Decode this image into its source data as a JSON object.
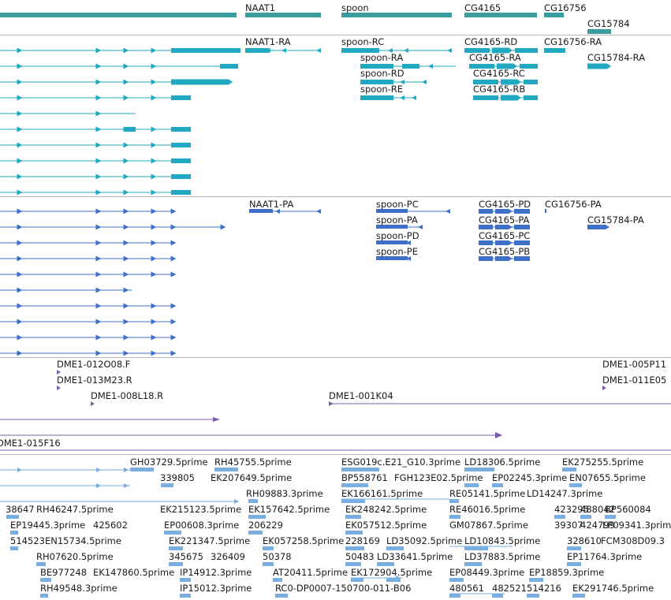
{
  "colors": {
    "gene": "#3a9d9d",
    "transcript": "#22a8c0",
    "protein": "#3f6fc6",
    "clone": "#7d5cb0",
    "est": "#78aee0",
    "separator": "#b8b8b8"
  },
  "tracks": {
    "genes": [
      "NAAT1",
      "spoon",
      "CG4165",
      "CG16756",
      "CG15784"
    ],
    "transcripts": [
      "NAAT1-RA",
      "spoon-RC",
      "spoon-RA",
      "spoon-RD",
      "spoon-RE",
      "CG4165-RD",
      "CG4165-RA",
      "CG4165-RC",
      "CG4165-RB",
      "CG16756-RA",
      "CG15784-RA"
    ],
    "proteins": [
      "NAAT1-PA",
      "spoon-PC",
      "spoon-PA",
      "spoon-PD",
      "spoon-PE",
      "CG4165-PD",
      "CG4165-PA",
      "CG4165-PC",
      "CG4165-PB",
      "CG16756-PA",
      "CG15784-PA"
    ],
    "clones": [
      "DME1-012O08.F",
      "DME1-013M23.R",
      "DME1-008L18.R",
      "DME1-001K04",
      "DME1-015F16",
      "DME1-005P11",
      "DME1-011E05"
    ],
    "ests": [
      "GH03729.5prime",
      "RH45755.5prime",
      "ESG019c.E21_G10.3prime",
      "LD18306.5prime",
      "EK275255.5prime",
      "339805",
      "EK207649.5prime",
      "BP558761",
      "FGH123E02.5prime",
      "EP02245.3prime",
      "EN07655.5prime",
      "RH09883.3prime",
      "EK166161.5prime",
      "RE05141.5prime",
      "LD14247.3prime",
      "38647",
      "RH46247.5prime",
      "EK215123.5prime",
      "EK157642.5prime",
      "EK248242.5prime",
      "RE46016.5prime",
      "423295",
      "488042",
      "BP560084",
      "EP19445.3prime",
      "425602",
      "EP00608.3prime",
      "206229",
      "EK057512.5prime",
      "GM07867.5prime",
      "39307",
      "424799",
      "LP09341.3prime",
      "514523",
      "EN15734.5prime",
      "EK221347.5prime",
      "EK057258.5prime",
      "228169",
      "LD35092.5prime",
      "LD10843.5prime",
      "328610",
      "FCM308D09.3",
      "RH07620.5prime",
      "345675",
      "326409",
      "50378",
      "50483",
      "LD33641.5prime",
      "LD37883.5prime",
      "EP11764.3prime",
      "BE977248",
      "EK147860.5prime",
      "IP14912.3prime",
      "AT20411.5prime",
      "EK172904.5prime",
      "EP08449.3prime",
      "EP18859.3prime",
      "RH49548.3prime",
      "IP15012.3prime",
      "RC0-DP0007-150700-011-B06",
      "480561",
      "482521",
      "514216",
      "EK291746.5prime"
    ]
  }
}
